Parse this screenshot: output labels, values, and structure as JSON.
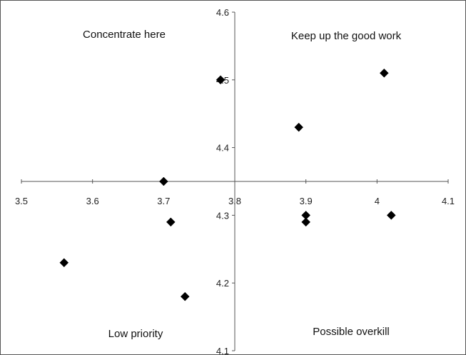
{
  "chart_data": {
    "type": "scatter",
    "title": "",
    "xlabel": "",
    "ylabel": "",
    "xlim": [
      3.5,
      4.1
    ],
    "ylim": [
      4.1,
      4.6
    ],
    "x_crosses_y_at": 4.35,
    "y_crosses_x_at": 3.8,
    "x_ticks": [
      "3.5",
      "3.6",
      "3.7",
      "3.8",
      "3.9",
      "4",
      "4.1"
    ],
    "y_ticks": [
      "4.1",
      "4.2",
      "4.3",
      "4.4",
      "4.5",
      "4.6"
    ],
    "grid": false,
    "legend": "none",
    "marker": "diamond",
    "marker_color": "#000000",
    "quadrant_labels": {
      "top_left": "Concentrate here",
      "top_right": "Keep up the good work",
      "bottom_left": "Low priority",
      "bottom_right": "Possible overkill"
    },
    "points": [
      {
        "x": 3.78,
        "y": 4.5
      },
      {
        "x": 4.01,
        "y": 4.51
      },
      {
        "x": 3.89,
        "y": 4.43
      },
      {
        "x": 3.7,
        "y": 4.35
      },
      {
        "x": 3.9,
        "y": 4.3
      },
      {
        "x": 3.9,
        "y": 4.29
      },
      {
        "x": 4.02,
        "y": 4.3
      },
      {
        "x": 3.71,
        "y": 4.29
      },
      {
        "x": 3.56,
        "y": 4.23
      },
      {
        "x": 3.73,
        "y": 4.18
      }
    ]
  }
}
